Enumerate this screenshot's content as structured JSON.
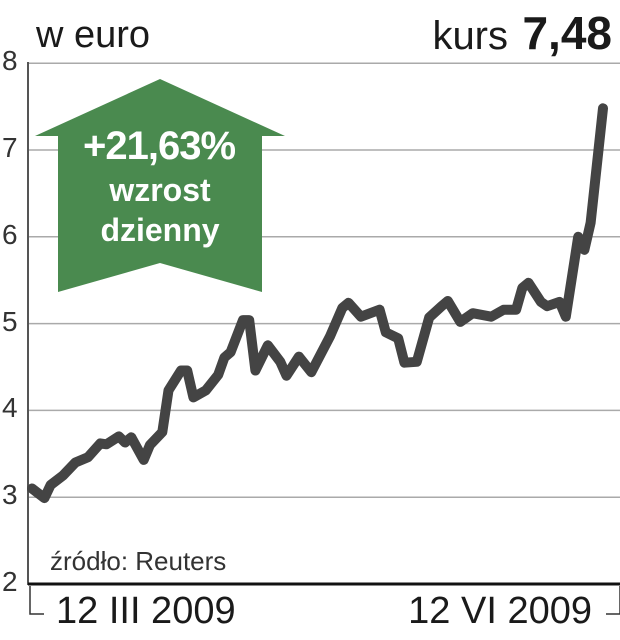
{
  "chart_data": {
    "type": "line",
    "unit_label": "w euro",
    "headline": {
      "label": "kurs",
      "value": "7,48"
    },
    "annotation": {
      "change": "+21,63%",
      "line1": "wzrost",
      "line2": "dzienny",
      "color": "#4a8a4f"
    },
    "source": "źródło: Reuters",
    "ylim": [
      2,
      8
    ],
    "yticks": [
      "2",
      "3",
      "4",
      "5",
      "6",
      "7",
      "8"
    ],
    "xticks": [
      {
        "date": "2009-03-12",
        "label": "12 III 2009"
      },
      {
        "date": "2009-06-12",
        "label": "12 VI 2009"
      }
    ],
    "grid": true,
    "line_color": "#444444",
    "series": [
      {
        "x": [
          "2009-03-12",
          "2009-03-14",
          "2009-03-15",
          "2009-03-17",
          "2009-03-19",
          "2009-03-21",
          "2009-03-23",
          "2009-03-24",
          "2009-03-26",
          "2009-03-27",
          "2009-03-28",
          "2009-03-30",
          "2009-03-31",
          "2009-04-02",
          "2009-04-03",
          "2009-04-05",
          "2009-04-06",
          "2009-04-07",
          "2009-04-09",
          "2009-04-11",
          "2009-04-12",
          "2009-04-13",
          "2009-04-15",
          "2009-04-16",
          "2009-04-17",
          "2009-04-19",
          "2009-04-21",
          "2009-04-22",
          "2009-04-24",
          "2009-04-26",
          "2009-04-29",
          "2009-05-01",
          "2009-05-02",
          "2009-05-04",
          "2009-05-07",
          "2009-05-08",
          "2009-05-10",
          "2009-05-11",
          "2009-05-13",
          "2009-05-15",
          "2009-05-17",
          "2009-05-18",
          "2009-05-20",
          "2009-05-22",
          "2009-05-25",
          "2009-05-27",
          "2009-05-29",
          "2009-05-30",
          "2009-05-31",
          "2009-06-02",
          "2009-06-03",
          "2009-06-05",
          "2009-06-06",
          "2009-06-08",
          "2009-06-09",
          "2009-06-10",
          "2009-06-12"
        ],
        "y": [
          3.1,
          2.99,
          3.14,
          3.25,
          3.4,
          3.46,
          3.62,
          3.61,
          3.7,
          3.63,
          3.69,
          3.43,
          3.6,
          3.75,
          4.23,
          4.46,
          4.46,
          4.15,
          4.23,
          4.41,
          4.61,
          4.67,
          5.04,
          5.04,
          4.46,
          4.75,
          4.56,
          4.4,
          4.62,
          4.44,
          4.85,
          5.18,
          5.24,
          5.08,
          5.16,
          4.9,
          4.83,
          4.55,
          4.56,
          5.07,
          5.2,
          5.26,
          5.02,
          5.12,
          5.08,
          5.16,
          5.16,
          5.41,
          5.47,
          5.25,
          5.2,
          5.25,
          5.08,
          6.0,
          5.85,
          6.16,
          7.48
        ]
      }
    ]
  }
}
